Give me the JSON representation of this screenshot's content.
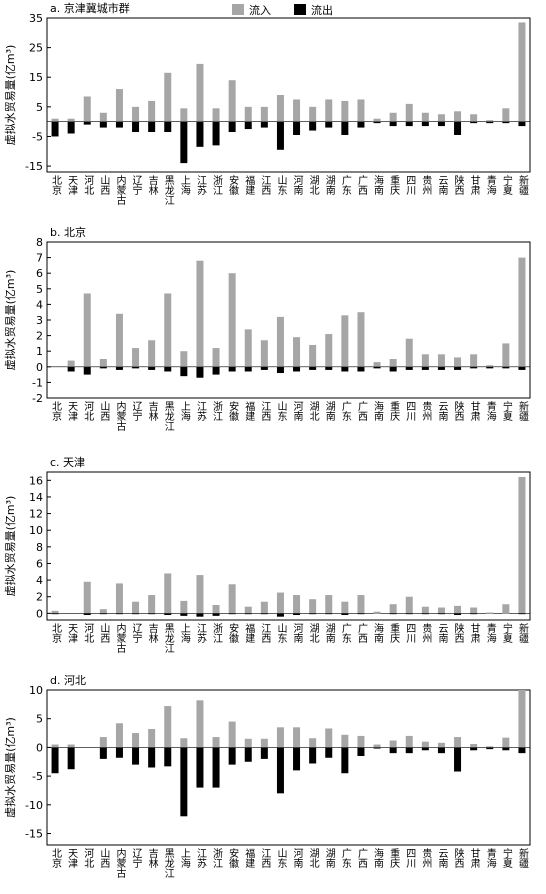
{
  "chart_data": [
    {
      "type": "bar",
      "title": "a. 京津冀城市群",
      "ylabel": "虚拟水贸易量(亿m³)",
      "categories": [
        "北京",
        "天津",
        "河北",
        "山西",
        "内蒙古",
        "辽宁",
        "吉林",
        "黑龙江",
        "上海",
        "江苏",
        "浙江",
        "安徽",
        "福建",
        "江西",
        "山东",
        "河南",
        "湖北",
        "湖南",
        "广东",
        "广西",
        "海南",
        "重庆",
        "四川",
        "贵州",
        "云南",
        "陕西",
        "甘肃",
        "青海",
        "宁夏",
        "新疆"
      ],
      "series": [
        {
          "name": "流入",
          "color": "#a6a6a6",
          "values": [
            1,
            1,
            8.5,
            3,
            11,
            5,
            7,
            16.5,
            4.5,
            19.5,
            4.5,
            14,
            5,
            5,
            9,
            7.5,
            5,
            7.5,
            7,
            7.5,
            1,
            3,
            6,
            3,
            2.5,
            3.5,
            2.5,
            0.5,
            4.5,
            33.5
          ]
        },
        {
          "name": "流出",
          "color": "#000000",
          "values": [
            -5,
            -4,
            -1,
            -2,
            -2,
            -3.5,
            -3.5,
            -3.5,
            -14,
            -8.5,
            -8,
            -3.5,
            -2.5,
            -2,
            -9.5,
            -4.5,
            -3,
            -2,
            -4.5,
            -2,
            -0.5,
            -1.5,
            -1.5,
            -1.5,
            -1.5,
            -4.5,
            -0.5,
            -0.5,
            -0.5,
            -1.5
          ]
        }
      ],
      "ylim": [
        -17,
        35
      ],
      "yticks": [
        -15,
        -5,
        5,
        15,
        25,
        35
      ]
    },
    {
      "type": "bar",
      "title": "b. 北京",
      "ylabel": "虚拟水贸易量(亿m³)",
      "categories": [
        "北京",
        "天津",
        "河北",
        "山西",
        "内蒙古",
        "辽宁",
        "吉林",
        "黑龙江",
        "上海",
        "江苏",
        "浙江",
        "安徽",
        "福建",
        "江西",
        "山东",
        "河南",
        "湖北",
        "湖南",
        "广东",
        "广西",
        "海南",
        "重庆",
        "四川",
        "贵州",
        "云南",
        "陕西",
        "甘肃",
        "青海",
        "宁夏",
        "新疆"
      ],
      "series": [
        {
          "color": "#a6a6a6",
          "values": [
            0,
            0.4,
            4.7,
            0.5,
            3.4,
            1.2,
            1.7,
            4.7,
            1.0,
            6.8,
            1.2,
            6.0,
            2.4,
            1.7,
            3.2,
            1.9,
            1.4,
            2.1,
            3.3,
            3.5,
            0.3,
            0.5,
            1.8,
            0.8,
            0.8,
            0.6,
            0.8,
            0.1,
            1.5,
            7.0
          ]
        },
        {
          "color": "#000000",
          "values": [
            0,
            -0.3,
            -0.5,
            -0.1,
            -0.2,
            -0.1,
            -0.2,
            -0.3,
            -0.6,
            -0.7,
            -0.5,
            -0.3,
            -0.3,
            -0.2,
            -0.4,
            -0.3,
            -0.2,
            -0.2,
            -0.3,
            -0.3,
            -0.1,
            -0.3,
            -0.2,
            -0.2,
            -0.2,
            -0.2,
            -0.1,
            -0.1,
            -0.1,
            -0.2
          ]
        }
      ],
      "ylim": [
        -2,
        8
      ],
      "yticks": [
        -2,
        -1,
        0,
        1,
        2,
        3,
        4,
        5,
        6,
        7,
        8
      ]
    },
    {
      "type": "bar",
      "title": "c. 天津",
      "ylabel": "虚拟水贸易量(亿m³)",
      "categories": [
        "北京",
        "天津",
        "河北",
        "山西",
        "内蒙古",
        "辽宁",
        "吉林",
        "黑龙江",
        "上海",
        "江苏",
        "浙江",
        "安徽",
        "福建",
        "江西",
        "山东",
        "河南",
        "湖北",
        "湖南",
        "广东",
        "广西",
        "海南",
        "重庆",
        "四川",
        "贵州",
        "云南",
        "陕西",
        "甘肃",
        "青海",
        "宁夏",
        "新疆"
      ],
      "series": [
        {
          "color": "#a6a6a6",
          "values": [
            0.3,
            0,
            3.8,
            0.5,
            3.6,
            1.4,
            2.2,
            4.8,
            1.5,
            4.6,
            1.0,
            3.5,
            0.8,
            1.4,
            2.5,
            2.2,
            1.7,
            2.2,
            1.4,
            2.2,
            0.2,
            1.1,
            2.0,
            0.8,
            0.7,
            0.9,
            0.7,
            0.1,
            1.1,
            16.4
          ]
        },
        {
          "color": "#000000",
          "values": [
            -0.1,
            0,
            -0.2,
            -0.1,
            -0.1,
            -0.1,
            -0.1,
            -0.2,
            -0.3,
            -0.4,
            -0.3,
            -0.1,
            -0.1,
            -0.1,
            -0.4,
            -0.2,
            -0.1,
            -0.1,
            -0.2,
            -0.1,
            0,
            -0.1,
            -0.1,
            -0.1,
            -0.1,
            -0.2,
            -0.1,
            0,
            0,
            -0.1
          ]
        }
      ],
      "ylim": [
        -0.8,
        17
      ],
      "yticks": [
        0,
        2,
        4,
        6,
        8,
        10,
        12,
        14,
        16
      ]
    },
    {
      "type": "bar",
      "title": "d. 河北",
      "ylabel": "虚拟水贸易量(亿m³)",
      "categories": [
        "北京",
        "天津",
        "河北",
        "山西",
        "内蒙古",
        "辽宁",
        "吉林",
        "黑龙江",
        "上海",
        "江苏",
        "浙江",
        "安徽",
        "福建",
        "江西",
        "山东",
        "河南",
        "湖北",
        "湖南",
        "广东",
        "广西",
        "海南",
        "重庆",
        "四川",
        "贵州",
        "云南",
        "陕西",
        "甘肃",
        "青海",
        "宁夏",
        "新疆"
      ],
      "series": [
        {
          "color": "#a6a6a6",
          "values": [
            0.5,
            0.5,
            0,
            1.8,
            4.2,
            2.5,
            3.2,
            7.2,
            1.6,
            8.2,
            1.8,
            4.5,
            1.5,
            1.5,
            3.5,
            3.5,
            1.6,
            3.3,
            2.2,
            2.0,
            0.5,
            1.2,
            2.0,
            1.0,
            0.8,
            1.8,
            0.6,
            0.2,
            1.7,
            10
          ]
        },
        {
          "color": "#000000",
          "values": [
            -4.5,
            -3.8,
            0,
            -2,
            -1.8,
            -3,
            -3.5,
            -3.3,
            -12,
            -7,
            -7,
            -3,
            -2.5,
            -2,
            -8,
            -4,
            -2.8,
            -1.8,
            -4.5,
            -1.5,
            -0.2,
            -1,
            -1,
            -0.5,
            -1,
            -4.2,
            -0.5,
            -0.3,
            -0.5,
            -1
          ]
        }
      ],
      "ylim": [
        -17,
        10
      ],
      "yticks": [
        -15,
        -10,
        -5,
        0,
        5,
        10
      ]
    }
  ]
}
